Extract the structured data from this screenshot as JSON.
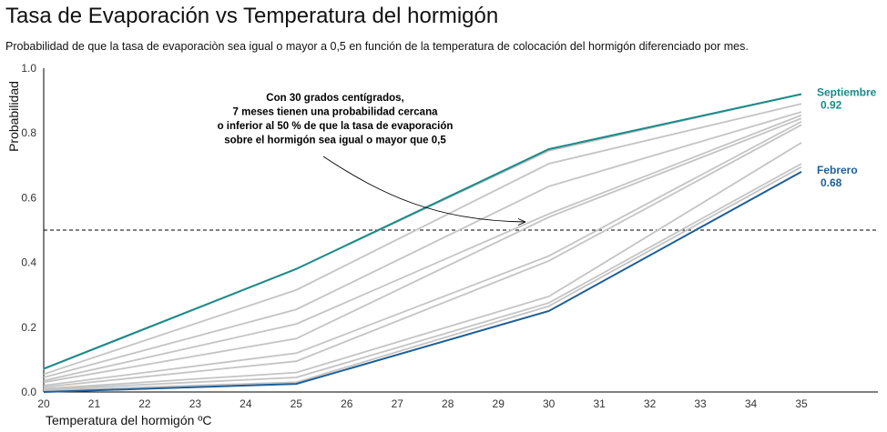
{
  "title": "Tasa de Evaporación vs Temperatura del hormigón",
  "subtitle": "Probabilidad de que la tasa de evaporaciòn sea igual o mayor a 0,5 en función de la temperatura de colocación del hormigón diferenciado por mes.",
  "chart_data": {
    "type": "line",
    "xlabel": "Temperatura del hormigón ºC",
    "ylabel": "Probabilidad",
    "xlim": [
      20,
      35
    ],
    "ylim": [
      0,
      1.0
    ],
    "x_ticks": [
      20,
      21,
      22,
      23,
      24,
      25,
      26,
      27,
      28,
      29,
      30,
      31,
      32,
      33,
      34,
      35
    ],
    "y_ticks": [
      "0.0",
      "0.2",
      "0.4",
      "0.6",
      "0.8",
      "1.0"
    ],
    "x": [
      20,
      25,
      30,
      35
    ],
    "reference_line": {
      "y": 0.5,
      "style": "dashed"
    },
    "colors": {
      "highlight_top": "#1a8a8a",
      "highlight_bottom": "#1f5f96",
      "other": "#c4c4c4"
    },
    "series": [
      {
        "values": [
          0.07,
          0.38,
          0.745,
          0.92
        ]
      },
      {
        "values": [
          0.055,
          0.315,
          0.705,
          0.89
        ]
      },
      {
        "values": [
          0.045,
          0.255,
          0.635,
          0.865
        ]
      },
      {
        "values": [
          0.035,
          0.21,
          0.55,
          0.855
        ]
      },
      {
        "values": [
          0.03,
          0.165,
          0.54,
          0.845
        ]
      },
      {
        "values": [
          0.02,
          0.12,
          0.42,
          0.835
        ]
      },
      {
        "values": [
          0.015,
          0.095,
          0.405,
          0.825
        ]
      },
      {
        "values": [
          0.01,
          0.06,
          0.295,
          0.77
        ]
      },
      {
        "values": [
          0.008,
          0.045,
          0.275,
          0.705
        ]
      },
      {
        "values": [
          0.005,
          0.03,
          0.265,
          0.695
        ]
      },
      {
        "name": "Septiembre",
        "values": [
          0.072,
          0.38,
          0.75,
          0.92
        ],
        "highlight": "top"
      },
      {
        "name": "Febrero",
        "values": [
          0.0,
          0.025,
          0.25,
          0.68
        ],
        "highlight": "bottom"
      }
    ],
    "end_labels": [
      {
        "series": "Septiembre",
        "value": "0.92"
      },
      {
        "series": "Febrero",
        "value": "0.68"
      }
    ],
    "annotation": [
      "Con 30 grados centígrados,",
      "7 meses tienen una probabilidad cercana",
      "o inferior al 50 % de que la tasa de evaporación",
      "sobre el hormigón  sea igual o mayor que 0,5"
    ]
  }
}
